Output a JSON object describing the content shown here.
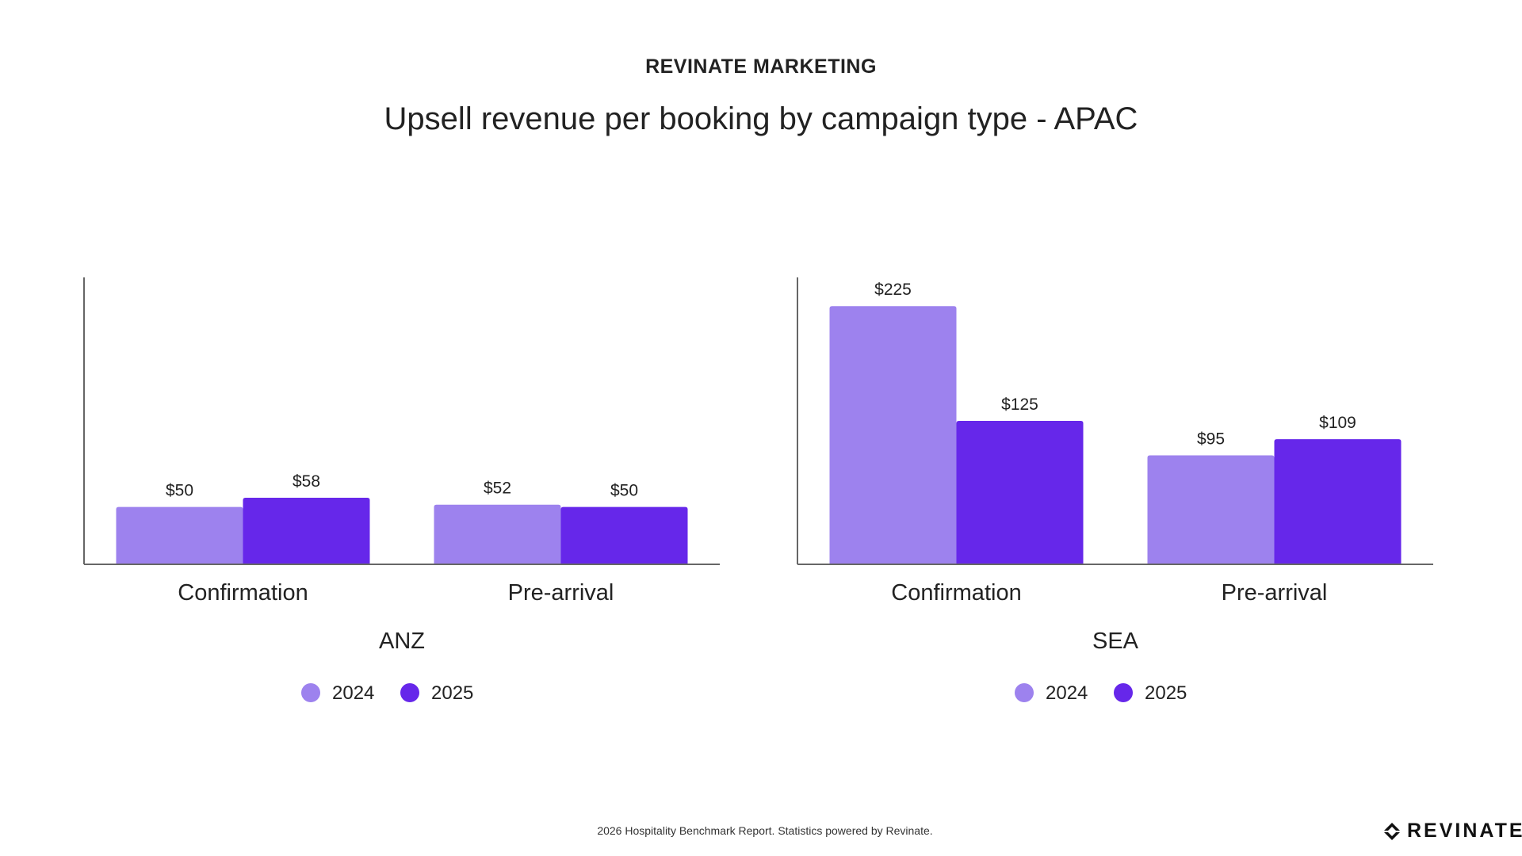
{
  "header": {
    "overline": "REVINATE MARKETING",
    "title": "Upsell revenue per booking by campaign type - APAC"
  },
  "colors": {
    "series_2024": "#9d82ee",
    "series_2025": "#6627ea",
    "axis": "#666666"
  },
  "chart_data": [
    {
      "type": "bar",
      "xlabel": "ANZ",
      "categories": [
        "Confirmation",
        "Pre-arrival"
      ],
      "series": [
        {
          "name": "2024",
          "values": [
            50,
            52
          ],
          "labels": [
            "$50",
            "$52"
          ]
        },
        {
          "name": "2025",
          "values": [
            58,
            50
          ],
          "labels": [
            "$58",
            "$50"
          ]
        }
      ],
      "ylim": [
        0,
        250
      ],
      "grid": false,
      "legend": "bottom"
    },
    {
      "type": "bar",
      "xlabel": "SEA",
      "categories": [
        "Confirmation",
        "Pre-arrival"
      ],
      "series": [
        {
          "name": "2024",
          "values": [
            225,
            95
          ],
          "labels": [
            "$225",
            "$95"
          ]
        },
        {
          "name": "2025",
          "values": [
            125,
            109
          ],
          "labels": [
            "$125",
            "$109"
          ]
        }
      ],
      "ylim": [
        0,
        250
      ],
      "grid": false,
      "legend": "bottom"
    }
  ],
  "footer": {
    "note": "2026 Hospitality Benchmark Report. Statistics powered by Revinate.",
    "logo_text": "REVINATE"
  }
}
